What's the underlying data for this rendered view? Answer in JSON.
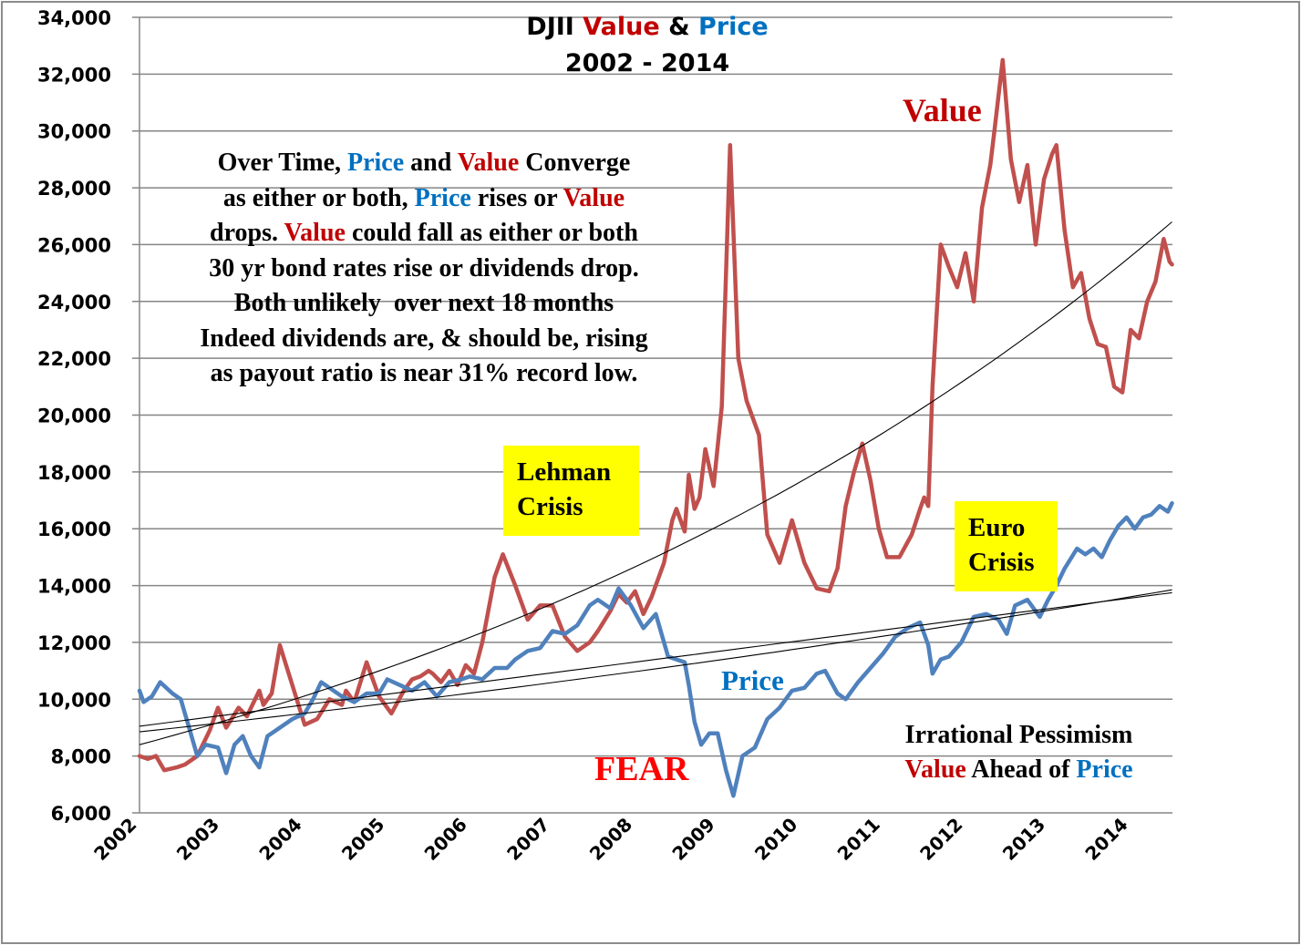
{
  "chart_data": {
    "type": "line",
    "title": {
      "parts": [
        {
          "text": "DJII ",
          "color": "#000000"
        },
        {
          "text": "Value",
          "color": "#c00000"
        },
        {
          "text": " & ",
          "color": "#000000"
        },
        {
          "text": "Price",
          "color": "#0070c0"
        }
      ],
      "line2": "2002 - 2014"
    },
    "xlabel": "",
    "ylabel": "",
    "xlim": [
      2002,
      2014.5
    ],
    "ylim": [
      6000,
      34000
    ],
    "ytick_step": 2000,
    "yticks": [
      "6,000",
      "8,000",
      "10,000",
      "12,000",
      "14,000",
      "16,000",
      "18,000",
      "20,000",
      "22,000",
      "24,000",
      "26,000",
      "28,000",
      "30,000",
      "32,000",
      "34,000"
    ],
    "xticks": [
      "2002",
      "2003",
      "2004",
      "2005",
      "2006",
      "2007",
      "2008",
      "2009",
      "2010",
      "2011",
      "2012",
      "2013",
      "2014"
    ],
    "grid": "horizontal",
    "legend": "none",
    "series": [
      {
        "name": "Value",
        "color": "#c0504d",
        "x": [
          2002.0,
          2002.1,
          2002.2,
          2002.3,
          2002.45,
          2002.55,
          2002.7,
          2002.85,
          2002.95,
          2003.05,
          2003.2,
          2003.3,
          2003.45,
          2003.5,
          2003.6,
          2003.7,
          2003.85,
          2004.0,
          2004.15,
          2004.3,
          2004.45,
          2004.5,
          2004.6,
          2004.75,
          2004.9,
          2005.05,
          2005.2,
          2005.3,
          2005.4,
          2005.5,
          2005.55,
          2005.65,
          2005.75,
          2005.85,
          2005.95,
          2006.05,
          2006.15,
          2006.3,
          2006.4,
          2006.55,
          2006.7,
          2006.85,
          2007.0,
          2007.15,
          2007.3,
          2007.45,
          2007.55,
          2007.7,
          2007.8,
          2007.9,
          2008.0,
          2008.1,
          2008.2,
          2008.35,
          2008.45,
          2008.5,
          2008.6,
          2008.65,
          2008.72,
          2008.78,
          2008.85,
          2008.95,
          2009.05,
          2009.15,
          2009.25,
          2009.35,
          2009.5,
          2009.6,
          2009.75,
          2009.9,
          2010.05,
          2010.2,
          2010.35,
          2010.45,
          2010.55,
          2010.65,
          2010.75,
          2010.85,
          2010.95,
          2011.05,
          2011.2,
          2011.35,
          2011.45,
          2011.5,
          2011.55,
          2011.6,
          2011.7,
          2011.8,
          2011.9,
          2012.0,
          2012.1,
          2012.2,
          2012.3,
          2012.35,
          2012.45,
          2012.55,
          2012.65,
          2012.75,
          2012.85,
          2012.95,
          2013.05,
          2013.1,
          2013.2,
          2013.3,
          2013.4,
          2013.5,
          2013.6,
          2013.7,
          2013.8,
          2013.9,
          2014.0,
          2014.1,
          2014.2,
          2014.3,
          2014.4,
          2014.47,
          2014.5
        ],
        "y": [
          8000,
          7900,
          8000,
          7500,
          7600,
          7700,
          8000,
          8900,
          9700,
          9000,
          9700,
          9400,
          10300,
          9800,
          10200,
          11900,
          10500,
          9100,
          9300,
          10000,
          9800,
          10300,
          9900,
          11300,
          10100,
          9500,
          10300,
          10700,
          10800,
          11000,
          10900,
          10600,
          11000,
          10500,
          11200,
          10900,
          12000,
          14300,
          15100,
          14000,
          12800,
          13300,
          13300,
          12200,
          11700,
          12000,
          12400,
          13100,
          13700,
          13400,
          13800,
          13000,
          13600,
          14800,
          16300,
          16700,
          15900,
          17900,
          16700,
          17100,
          18800,
          17500,
          20300,
          29500,
          22000,
          20500,
          19300,
          15800,
          14800,
          16300,
          14800,
          13900,
          13800,
          14600,
          16800,
          18000,
          19000,
          17700,
          16000,
          15000,
          15000,
          15800,
          16700,
          17100,
          16800,
          21000,
          26000,
          25200,
          24500,
          25700,
          24000,
          27300,
          28800,
          30000,
          32500,
          29000,
          27500,
          28800,
          26000,
          28300,
          29200,
          29500,
          26500,
          24500,
          25000,
          23400,
          22500,
          22400,
          21000,
          20800,
          23000,
          22700,
          24000,
          24700,
          26200,
          25400,
          25300
        ]
      },
      {
        "name": "Price",
        "color": "#4f81bd",
        "x": [
          2002.0,
          2002.05,
          2002.15,
          2002.25,
          2002.4,
          2002.5,
          2002.55,
          2002.6,
          2002.7,
          2002.8,
          2002.95,
          2003.05,
          2003.15,
          2003.25,
          2003.35,
          2003.45,
          2003.55,
          2003.7,
          2003.85,
          2004.0,
          2004.1,
          2004.2,
          2004.3,
          2004.45,
          2004.6,
          2004.75,
          2004.9,
          2005.0,
          2005.15,
          2005.3,
          2005.45,
          2005.6,
          2005.75,
          2005.9,
          2006.0,
          2006.15,
          2006.3,
          2006.45,
          2006.55,
          2006.7,
          2006.85,
          2007.0,
          2007.15,
          2007.3,
          2007.45,
          2007.55,
          2007.7,
          2007.8,
          2007.95,
          2008.1,
          2008.25,
          2008.4,
          2008.5,
          2008.6,
          2008.65,
          2008.72,
          2008.8,
          2008.9,
          2009.0,
          2009.1,
          2009.19,
          2009.3,
          2009.45,
          2009.6,
          2009.75,
          2009.9,
          2010.05,
          2010.2,
          2010.3,
          2010.45,
          2010.55,
          2010.7,
          2010.85,
          2011.0,
          2011.15,
          2011.3,
          2011.45,
          2011.55,
          2011.6,
          2011.7,
          2011.8,
          2011.95,
          2012.1,
          2012.25,
          2012.4,
          2012.5,
          2012.6,
          2012.75,
          2012.9,
          2013.0,
          2013.1,
          2013.2,
          2013.35,
          2013.45,
          2013.55,
          2013.65,
          2013.75,
          2013.85,
          2013.95,
          2014.05,
          2014.15,
          2014.25,
          2014.35,
          2014.45,
          2014.5
        ],
        "y": [
          10300,
          9900,
          10100,
          10600,
          10200,
          10000,
          9500,
          9000,
          8000,
          8400,
          8300,
          7400,
          8400,
          8700,
          8000,
          7600,
          8700,
          9000,
          9300,
          9500,
          10000,
          10600,
          10400,
          10100,
          9900,
          10200,
          10200,
          10700,
          10500,
          10300,
          10600,
          10100,
          10600,
          10700,
          10800,
          10700,
          11100,
          11100,
          11400,
          11700,
          11800,
          12400,
          12300,
          12600,
          13300,
          13500,
          13200,
          13900,
          13300,
          12500,
          13000,
          11500,
          11400,
          11300,
          10500,
          9200,
          8400,
          8800,
          8800,
          7500,
          6600,
          8000,
          8300,
          9300,
          9700,
          10300,
          10400,
          10900,
          11000,
          10200,
          10000,
          10600,
          11100,
          11600,
          12200,
          12500,
          12700,
          11900,
          10900,
          11400,
          11500,
          12000,
          12900,
          13000,
          12800,
          12300,
          13300,
          13500,
          12900,
          13500,
          14000,
          14600,
          15300,
          15100,
          15300,
          15000,
          15600,
          16100,
          16400,
          16000,
          16400,
          16500,
          16800,
          16600,
          16900
        ]
      }
    ],
    "trendlines": [
      {
        "for": "Value",
        "type": "exponential",
        "x": [
          2002.0,
          2014.5
        ],
        "y": [
          8400,
          26800
        ]
      },
      {
        "for": "Price",
        "type": "linear",
        "x": [
          2002.0,
          2014.5
        ],
        "y": [
          9050,
          13750
        ]
      },
      {
        "for": "Price",
        "type": "exponential",
        "x": [
          2002.0,
          2014.5
        ],
        "y": [
          8850,
          13850
        ]
      }
    ],
    "annotations": [
      {
        "id": "value-label",
        "text": "Value",
        "color": "#c00000"
      },
      {
        "id": "price-label",
        "text": "Price",
        "color": "#0070c0"
      },
      {
        "id": "fear-label",
        "text": "FEAR",
        "color": "#ff0000"
      },
      {
        "id": "lehman-box",
        "lines": [
          "Lehman",
          "Crisis"
        ],
        "background": "#ffff00"
      },
      {
        "id": "euro-box",
        "lines": [
          "Euro",
          "Crisis"
        ],
        "background": "#ffff00"
      }
    ]
  },
  "note": {
    "lines": [
      [
        {
          "t": "Over Time, ",
          "c": ""
        },
        {
          "t": "Price",
          "c": "blue"
        },
        {
          "t": " and ",
          "c": ""
        },
        {
          "t": "Value",
          "c": "red"
        },
        {
          "t": " Converge",
          "c": ""
        }
      ],
      [
        {
          "t": "as either or both, ",
          "c": ""
        },
        {
          "t": "Price",
          "c": "blue"
        },
        {
          "t": " rises or ",
          "c": ""
        },
        {
          "t": "Value",
          "c": "red"
        }
      ],
      [
        {
          "t": "drops. ",
          "c": ""
        },
        {
          "t": "Value",
          "c": "red"
        },
        {
          "t": " could fall as either or both",
          "c": ""
        }
      ],
      [
        {
          "t": "30 yr bond rates rise or dividends drop.",
          "c": ""
        }
      ],
      [
        {
          "t": "Both unlikely  over next 18 months",
          "c": ""
        }
      ],
      [
        {
          "t": "Indeed dividends are, & should be, rising",
          "c": ""
        }
      ],
      [
        {
          "t": "as payout ratio is near 31% record low.",
          "c": ""
        }
      ]
    ]
  },
  "pessimism": {
    "line1": "Irrational Pessimism",
    "line2_value": "Value",
    "line2_mid": " Ahead of ",
    "line2_price": "Price"
  }
}
